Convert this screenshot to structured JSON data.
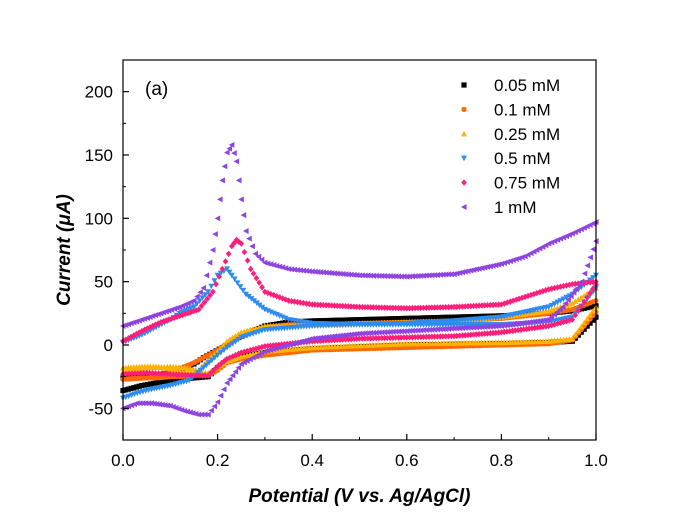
{
  "chart_data": {
    "type": "scatter",
    "panel_label": "(a)",
    "xlabel": "Potential (V vs. Ag/AgCl)",
    "ylabel": "Current (μA)",
    "xlim": [
      0.0,
      1.0
    ],
    "ylim": [
      -75,
      225
    ],
    "xticks": [
      0.0,
      0.2,
      0.4,
      0.6,
      0.8,
      1.0
    ],
    "xtick_labels": [
      "0.0",
      "0.2",
      "0.4",
      "0.6",
      "0.8",
      "1.0"
    ],
    "yticks": [
      -50,
      0,
      50,
      100,
      150,
      200
    ],
    "ytick_labels": [
      "-50",
      "0",
      "50",
      "100",
      "150",
      "200"
    ],
    "grid": false,
    "legend_position": "top-right",
    "series": [
      {
        "name": "0.05 mM",
        "color": "#000000",
        "marker": "square",
        "forward": [
          [
            0.0,
            -26
          ],
          [
            0.05,
            -25
          ],
          [
            0.1,
            -22
          ],
          [
            0.15,
            -15
          ],
          [
            0.17,
            -10
          ],
          [
            0.19,
            -6
          ],
          [
            0.21,
            -2
          ],
          [
            0.24,
            5
          ],
          [
            0.28,
            12
          ],
          [
            0.3,
            15
          ],
          [
            0.35,
            18
          ],
          [
            0.4,
            19
          ],
          [
            0.5,
            20
          ],
          [
            0.6,
            21
          ],
          [
            0.7,
            22
          ],
          [
            0.8,
            23
          ],
          [
            0.9,
            25
          ],
          [
            0.95,
            27
          ],
          [
            1.0,
            31
          ]
        ],
        "reverse": [
          [
            1.0,
            22
          ],
          [
            0.95,
            3
          ],
          [
            0.9,
            2
          ],
          [
            0.8,
            1
          ],
          [
            0.6,
            0
          ],
          [
            0.4,
            -3
          ],
          [
            0.3,
            -6
          ],
          [
            0.25,
            -9
          ],
          [
            0.22,
            -12
          ],
          [
            0.2,
            -18
          ],
          [
            0.18,
            -25
          ],
          [
            0.15,
            -26
          ],
          [
            0.12,
            -27
          ],
          [
            0.1,
            -29
          ],
          [
            0.07,
            -30
          ],
          [
            0.04,
            -32
          ],
          [
            0.0,
            -36
          ]
        ]
      },
      {
        "name": "0.1 mM",
        "color": "#ff6a00",
        "marker": "circle",
        "forward": [
          [
            0.0,
            -27
          ],
          [
            0.05,
            -26
          ],
          [
            0.1,
            -22
          ],
          [
            0.15,
            -14
          ],
          [
            0.18,
            -8
          ],
          [
            0.2,
            -4
          ],
          [
            0.22,
            1
          ],
          [
            0.25,
            7
          ],
          [
            0.3,
            14
          ],
          [
            0.35,
            16
          ],
          [
            0.4,
            16
          ],
          [
            0.5,
            17
          ],
          [
            0.6,
            18
          ],
          [
            0.7,
            19
          ],
          [
            0.8,
            21
          ],
          [
            0.9,
            25
          ],
          [
            0.95,
            28
          ],
          [
            1.0,
            35
          ]
        ],
        "reverse": [
          [
            1.0,
            26
          ],
          [
            0.95,
            4
          ],
          [
            0.9,
            1
          ],
          [
            0.8,
            0
          ],
          [
            0.6,
            -2
          ],
          [
            0.4,
            -4
          ],
          [
            0.3,
            -8
          ],
          [
            0.25,
            -11
          ],
          [
            0.22,
            -14
          ],
          [
            0.2,
            -20
          ],
          [
            0.18,
            -24
          ],
          [
            0.15,
            -24
          ],
          [
            0.12,
            -25
          ],
          [
            0.1,
            -25
          ],
          [
            0.07,
            -26
          ],
          [
            0.04,
            -26
          ],
          [
            0.0,
            -27
          ]
        ]
      },
      {
        "name": "0.25 mM",
        "color": "#ffb300",
        "marker": "triangle-up",
        "forward": [
          [
            0.0,
            -21
          ],
          [
            0.05,
            -18
          ],
          [
            0.1,
            -17
          ],
          [
            0.13,
            -18
          ],
          [
            0.16,
            -20
          ],
          [
            0.18,
            -12
          ],
          [
            0.2,
            -5
          ],
          [
            0.22,
            3
          ],
          [
            0.25,
            10
          ],
          [
            0.3,
            15
          ],
          [
            0.4,
            16
          ],
          [
            0.5,
            17
          ],
          [
            0.6,
            18
          ],
          [
            0.7,
            19
          ],
          [
            0.8,
            22
          ],
          [
            0.9,
            27
          ],
          [
            0.95,
            33
          ],
          [
            1.0,
            45
          ]
        ],
        "reverse": [
          [
            1.0,
            30
          ],
          [
            0.95,
            5
          ],
          [
            0.9,
            3
          ],
          [
            0.8,
            2
          ],
          [
            0.6,
            1
          ],
          [
            0.4,
            -2
          ],
          [
            0.3,
            -5
          ],
          [
            0.25,
            -9
          ],
          [
            0.22,
            -13
          ],
          [
            0.2,
            -18
          ],
          [
            0.18,
            -22
          ],
          [
            0.15,
            -22
          ],
          [
            0.12,
            -21
          ],
          [
            0.1,
            -19
          ],
          [
            0.07,
            -17
          ],
          [
            0.04,
            -17
          ],
          [
            0.0,
            -18
          ]
        ]
      },
      {
        "name": "0.5 mM",
        "color": "#2e8cf0",
        "marker": "triangle-down",
        "forward": [
          [
            0.0,
            -42
          ],
          [
            0.03,
            -38
          ],
          [
            0.06,
            -35
          ],
          [
            0.1,
            -32
          ],
          [
            0.14,
            -28
          ],
          [
            0.17,
            -18
          ],
          [
            0.2,
            -8
          ],
          [
            0.22,
            -2
          ],
          [
            0.25,
            6
          ],
          [
            0.3,
            12
          ],
          [
            0.4,
            15
          ],
          [
            0.5,
            16
          ],
          [
            0.6,
            17
          ],
          [
            0.7,
            19
          ],
          [
            0.8,
            22
          ],
          [
            0.9,
            30
          ],
          [
            0.95,
            40
          ],
          [
            1.0,
            55
          ]
        ],
        "reverse": [
          [
            1.0,
            45
          ],
          [
            0.95,
            22
          ],
          [
            0.9,
            18
          ],
          [
            0.8,
            16
          ],
          [
            0.7,
            16
          ],
          [
            0.6,
            16
          ],
          [
            0.5,
            16
          ],
          [
            0.4,
            17
          ],
          [
            0.35,
            20
          ],
          [
            0.3,
            28
          ],
          [
            0.26,
            40
          ],
          [
            0.23,
            55
          ],
          [
            0.22,
            60
          ],
          [
            0.2,
            55
          ],
          [
            0.18,
            42
          ],
          [
            0.15,
            30
          ],
          [
            0.12,
            25
          ],
          [
            0.1,
            20
          ],
          [
            0.07,
            14
          ],
          [
            0.04,
            8
          ],
          [
            0.0,
            2
          ]
        ]
      },
      {
        "name": "0.75 mM",
        "color": "#ff1f7a",
        "marker": "diamond",
        "forward": [
          [
            0.0,
            3
          ],
          [
            0.04,
            11
          ],
          [
            0.08,
            18
          ],
          [
            0.12,
            23
          ],
          [
            0.16,
            28
          ],
          [
            0.19,
            42
          ],
          [
            0.21,
            60
          ],
          [
            0.23,
            78
          ],
          [
            0.24,
            83
          ],
          [
            0.25,
            80
          ],
          [
            0.27,
            60
          ],
          [
            0.3,
            42
          ],
          [
            0.35,
            35
          ],
          [
            0.4,
            32
          ],
          [
            0.5,
            30
          ],
          [
            0.6,
            29
          ],
          [
            0.7,
            30
          ],
          [
            0.8,
            32
          ],
          [
            0.85,
            38
          ],
          [
            0.9,
            44
          ],
          [
            0.95,
            48
          ],
          [
            1.0,
            50
          ]
        ],
        "reverse": [
          [
            1.0,
            48
          ],
          [
            0.95,
            20
          ],
          [
            0.9,
            15
          ],
          [
            0.8,
            10
          ],
          [
            0.7,
            7
          ],
          [
            0.6,
            6
          ],
          [
            0.5,
            5
          ],
          [
            0.4,
            3
          ],
          [
            0.3,
            -1
          ],
          [
            0.25,
            -6
          ],
          [
            0.22,
            -11
          ],
          [
            0.2,
            -17
          ],
          [
            0.18,
            -24
          ],
          [
            0.15,
            -24
          ],
          [
            0.1,
            -23
          ],
          [
            0.05,
            -22
          ],
          [
            0.0,
            -23
          ]
        ]
      },
      {
        "name": "1 mM",
        "color": "#8e44e0",
        "marker": "triangle-left",
        "forward": [
          [
            0.0,
            15
          ],
          [
            0.04,
            20
          ],
          [
            0.08,
            25
          ],
          [
            0.12,
            30
          ],
          [
            0.15,
            35
          ],
          [
            0.17,
            45
          ],
          [
            0.19,
            75
          ],
          [
            0.2,
            100
          ],
          [
            0.21,
            130
          ],
          [
            0.22,
            152
          ],
          [
            0.23,
            158
          ],
          [
            0.24,
            145
          ],
          [
            0.25,
            115
          ],
          [
            0.26,
            90
          ],
          [
            0.28,
            72
          ],
          [
            0.3,
            65
          ],
          [
            0.35,
            60
          ],
          [
            0.4,
            58
          ],
          [
            0.5,
            55
          ],
          [
            0.6,
            54
          ],
          [
            0.7,
            56
          ],
          [
            0.8,
            64
          ],
          [
            0.85,
            70
          ],
          [
            0.9,
            80
          ],
          [
            0.95,
            88
          ],
          [
            1.0,
            97
          ]
        ],
        "reverse": [
          [
            1.0,
            82
          ],
          [
            0.97,
            50
          ],
          [
            0.93,
            30
          ],
          [
            0.9,
            20
          ],
          [
            0.8,
            15
          ],
          [
            0.7,
            13
          ],
          [
            0.6,
            11
          ],
          [
            0.5,
            9
          ],
          [
            0.4,
            5
          ],
          [
            0.3,
            -5
          ],
          [
            0.25,
            -15
          ],
          [
            0.22,
            -30
          ],
          [
            0.2,
            -45
          ],
          [
            0.18,
            -55
          ],
          [
            0.16,
            -55
          ],
          [
            0.13,
            -52
          ],
          [
            0.1,
            -48
          ],
          [
            0.06,
            -46
          ],
          [
            0.03,
            -46
          ],
          [
            0.0,
            -50
          ]
        ]
      }
    ]
  }
}
